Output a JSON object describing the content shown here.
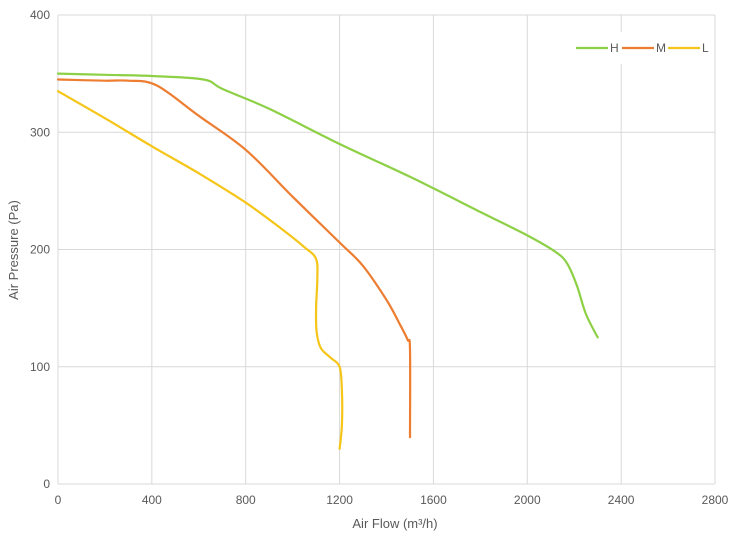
{
  "chart_data": {
    "type": "line",
    "title": "",
    "xlabel": "Air Flow  (m³/h)",
    "ylabel": "Air Pressure  (Pa)",
    "xlim": [
      0,
      2800
    ],
    "ylim": [
      0,
      400
    ],
    "xticks": [
      0,
      400,
      800,
      1200,
      1600,
      2000,
      2400,
      2800
    ],
    "yticks": [
      0,
      100,
      200,
      300,
      400
    ],
    "grid": true,
    "legend_position": "top-right",
    "series": [
      {
        "name": "H",
        "color": "#8dd046",
        "points": [
          [
            0,
            350
          ],
          [
            200,
            349
          ],
          [
            400,
            348
          ],
          [
            620,
            345
          ],
          [
            700,
            337
          ],
          [
            900,
            320
          ],
          [
            1200,
            290
          ],
          [
            1500,
            262
          ],
          [
            1800,
            232
          ],
          [
            2000,
            212
          ],
          [
            2120,
            198
          ],
          [
            2170,
            188
          ],
          [
            2210,
            170
          ],
          [
            2250,
            145
          ],
          [
            2300,
            125
          ]
        ]
      },
      {
        "name": "M",
        "color": "#ed7d31",
        "points": [
          [
            0,
            345
          ],
          [
            200,
            344
          ],
          [
            300,
            344
          ],
          [
            420,
            340
          ],
          [
            600,
            314
          ],
          [
            800,
            285
          ],
          [
            1000,
            245
          ],
          [
            1200,
            206
          ],
          [
            1300,
            186
          ],
          [
            1400,
            157
          ],
          [
            1460,
            135
          ],
          [
            1490,
            123
          ],
          [
            1500,
            115
          ],
          [
            1500,
            40
          ]
        ]
      },
      {
        "name": "L",
        "color": "#f5c518",
        "points": [
          [
            0,
            335
          ],
          [
            200,
            312
          ],
          [
            400,
            288
          ],
          [
            600,
            265
          ],
          [
            800,
            240
          ],
          [
            950,
            218
          ],
          [
            1050,
            202
          ],
          [
            1100,
            192
          ],
          [
            1105,
            175
          ],
          [
            1100,
            150
          ],
          [
            1102,
            130
          ],
          [
            1120,
            116
          ],
          [
            1160,
            108
          ],
          [
            1200,
            100
          ],
          [
            1210,
            80
          ],
          [
            1210,
            50
          ],
          [
            1200,
            30
          ]
        ]
      }
    ]
  }
}
